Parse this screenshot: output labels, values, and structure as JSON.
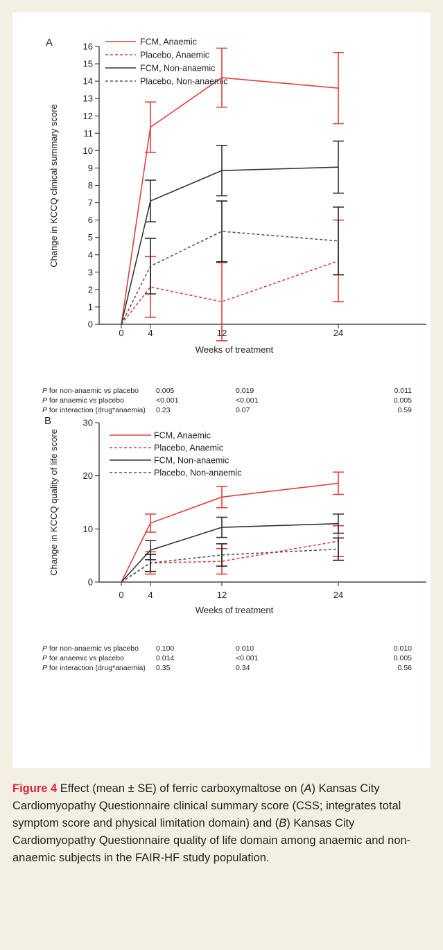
{
  "chart_data": [
    {
      "type": "line",
      "panel_label": "A",
      "ylabel": "Change in KCCQ clinical summary score",
      "xlabel": "Weeks of treatment",
      "x": [
        0,
        4,
        12,
        24
      ],
      "xticks": [
        "0",
        "4",
        "12",
        "24"
      ],
      "ylim": [
        0,
        16
      ],
      "yticks": [
        "0",
        "1",
        "2",
        "3",
        "4",
        "5",
        "6",
        "7",
        "8",
        "9",
        "10",
        "11",
        "12",
        "13",
        "14",
        "15",
        "16"
      ],
      "grid": false,
      "legend_position": "top-left",
      "series": [
        {
          "name": "FCM, Anaemic",
          "values": [
            0,
            11.35,
            14.2,
            13.6
          ],
          "error": [
            0,
            1.45,
            1.7,
            2.05
          ],
          "color": "#e0403c",
          "dash": "solid"
        },
        {
          "name": "Placebo, Anaemic",
          "values": [
            0,
            2.15,
            1.3,
            3.65
          ],
          "error": [
            0,
            1.75,
            2.25,
            2.35
          ],
          "color": "#e0403c",
          "dash": "dashed"
        },
        {
          "name": "FCM, Non-anaemic",
          "values": [
            0,
            7.1,
            8.85,
            9.05
          ],
          "error": [
            0,
            1.2,
            1.45,
            1.5
          ],
          "color": "#333333",
          "dash": "solid"
        },
        {
          "name": "Placebo, Non-anaemic",
          "values": [
            0,
            3.35,
            5.35,
            4.8
          ],
          "error": [
            0,
            1.6,
            1.75,
            1.95
          ],
          "color": "#555555",
          "dash": "dashed"
        }
      ],
      "p_table": [
        {
          "label_italic": "P",
          "label": " for non-anaemic vs placebo",
          "values": [
            "0.005",
            "0.019",
            "0.011"
          ]
        },
        {
          "label_italic": "P",
          "label": " for anaemic vs placebo",
          "values": [
            "<0.001",
            "<0.001",
            "0.005"
          ]
        },
        {
          "label_italic": "P",
          "label": " for interaction (drug*anaemia)",
          "values": [
            "0.23",
            "0.07",
            "0.59"
          ]
        }
      ]
    },
    {
      "type": "line",
      "panel_label": "B",
      "ylabel": "Change in KCCQ quality of life score",
      "xlabel": "Weeks of treatment",
      "x": [
        0,
        4,
        12,
        24
      ],
      "xticks": [
        "0",
        "4",
        "12",
        "24"
      ],
      "ylim": [
        0,
        30
      ],
      "yticks": [
        "0",
        "10",
        "20",
        "30"
      ],
      "grid": false,
      "legend_position": "top-left",
      "series": [
        {
          "name": "FCM, Anaemic",
          "values": [
            0,
            11.1,
            16.0,
            18.6
          ],
          "error": [
            0,
            1.7,
            2.0,
            2.1
          ],
          "color": "#e0403c",
          "dash": "solid"
        },
        {
          "name": "Placebo, Anaemic",
          "values": [
            0,
            3.6,
            3.9,
            7.7
          ],
          "error": [
            0,
            2.1,
            2.4,
            2.9
          ],
          "color": "#e0403c",
          "dash": "dashed"
        },
        {
          "name": "FCM, Non-anaemic",
          "values": [
            0,
            6.0,
            10.3,
            11.0
          ],
          "error": [
            0,
            1.8,
            1.9,
            1.8
          ],
          "color": "#333333",
          "dash": "solid"
        },
        {
          "name": "Placebo, Non-anaemic",
          "values": [
            0,
            3.6,
            5.1,
            6.2
          ],
          "error": [
            0,
            1.6,
            2.1,
            2.1
          ],
          "color": "#555555",
          "dash": "dashed"
        }
      ],
      "p_table": [
        {
          "label_italic": "P",
          "label": " for non-anaemic vs placebo",
          "values": [
            "0.100",
            "0.010",
            "0.010"
          ]
        },
        {
          "label_italic": "P",
          "label": " for anaemic vs placebo",
          "values": [
            "0.014",
            "<0.001",
            "0.005"
          ]
        },
        {
          "label_italic": "P",
          "label": " for interaction (drug*anaemia)",
          "values": [
            "0.35",
            "0.34",
            "0.56"
          ]
        }
      ]
    }
  ],
  "caption": {
    "figure_label": "Figure 4",
    "text_1": " Effect (mean ± SE) of ferric carboxymaltose on (",
    "a": "A",
    "text_2": ") Kansas City Cardiomyopathy Questionnaire clinical summary score (CSS; integrates total symptom score and physical limitation domain) and (",
    "b": "B",
    "text_3": ") Kansas City Cardiomyopathy Questionnaire quality of life domain among anaemic and non-anaemic subjects in the FAIR-HF study population."
  }
}
